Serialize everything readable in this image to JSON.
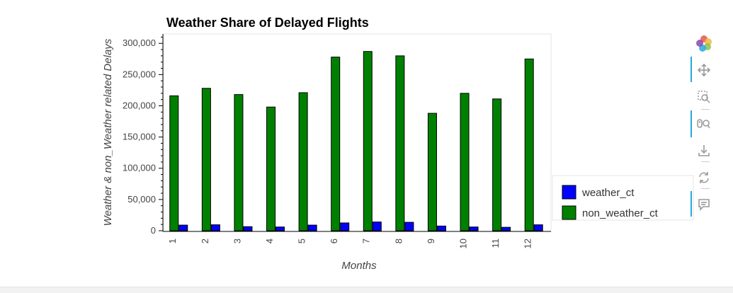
{
  "chart_data": {
    "type": "bar",
    "title": "Weather Share of Delayed Flights",
    "xlabel": "Months",
    "ylabel": "Weather & non_Weather related Delays",
    "categories": [
      "1",
      "2",
      "3",
      "4",
      "5",
      "6",
      "7",
      "8",
      "9",
      "10",
      "11",
      "12"
    ],
    "series": [
      {
        "name": "weather_ct",
        "color": "#0000ff",
        "values": [
          9000,
          9500,
          6500,
          6000,
          9000,
          12500,
          14000,
          13500,
          7500,
          6000,
          5500,
          9500
        ]
      },
      {
        "name": "non_weather_ct",
        "color": "#008000",
        "values": [
          216000,
          228000,
          218000,
          198000,
          221000,
          278000,
          287000,
          280000,
          188000,
          220000,
          211000,
          275000
        ]
      }
    ],
    "ylim": [
      0,
      315000
    ],
    "yticks": [
      0,
      50000,
      100000,
      150000,
      200000,
      250000,
      300000
    ],
    "ytick_labels": [
      "0",
      "50,000",
      "100,000",
      "150,000",
      "200,000",
      "250,000",
      "300,000"
    ],
    "legend_position": "right",
    "grid": false
  },
  "toolbar": {
    "items": [
      {
        "icon": "bokeh-logo-icon"
      },
      {
        "icon": "pan-icon"
      },
      {
        "icon": "box-zoom-icon"
      },
      {
        "icon": "wheel-zoom-icon"
      },
      {
        "icon": "save-icon"
      },
      {
        "icon": "reset-icon"
      },
      {
        "icon": "hover-icon"
      }
    ]
  }
}
